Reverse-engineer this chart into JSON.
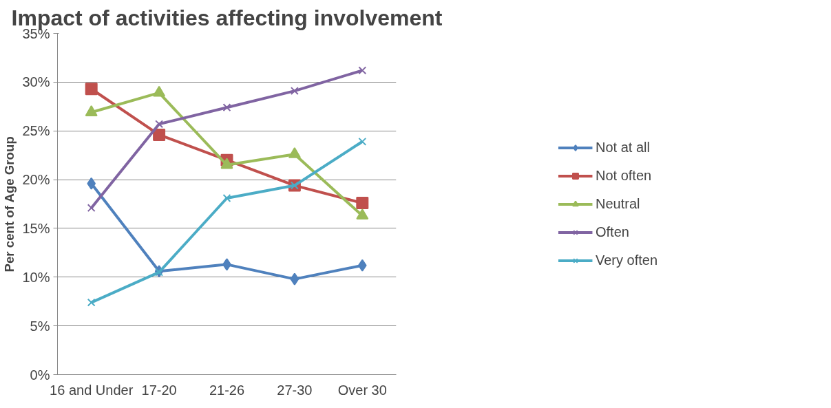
{
  "chart_data": {
    "type": "line",
    "title": "Impact of activities affecting involvement",
    "ylabel": "Per cent of Age Group",
    "categories": [
      "16 and Under",
      "17-20",
      "21-26",
      "27-30",
      "Over 30"
    ],
    "series": [
      {
        "name": "Not at all",
        "color": "#4f81bd",
        "marker": "diamond",
        "values": [
          19.6,
          10.6,
          11.3,
          9.8,
          11.2
        ]
      },
      {
        "name": "Not often",
        "color": "#c0504d",
        "marker": "square",
        "values": [
          29.3,
          24.6,
          22.0,
          19.4,
          17.6
        ]
      },
      {
        "name": "Neutral",
        "color": "#9bbb59",
        "marker": "triangle",
        "values": [
          26.9,
          28.9,
          21.5,
          22.6,
          16.3
        ]
      },
      {
        "name": "Often",
        "color": "#8064a2",
        "marker": "cross",
        "values": [
          17.1,
          25.7,
          27.4,
          29.1,
          31.2
        ]
      },
      {
        "name": "Very often",
        "color": "#4bacc6",
        "marker": "cross",
        "values": [
          7.4,
          10.5,
          18.1,
          19.4,
          23.9
        ]
      }
    ],
    "ylim": [
      0,
      35
    ],
    "yticks": [
      {
        "value": 0,
        "label": "0%"
      },
      {
        "value": 5,
        "label": "5%"
      },
      {
        "value": 10,
        "label": "10%"
      },
      {
        "value": 15,
        "label": "15%"
      },
      {
        "value": 20,
        "label": "20%"
      },
      {
        "value": 25,
        "label": "25%"
      },
      {
        "value": 30,
        "label": "30%"
      },
      {
        "value": 35,
        "label": "35%"
      }
    ],
    "grid": "y",
    "legend": "right",
    "line_style": "solid"
  }
}
